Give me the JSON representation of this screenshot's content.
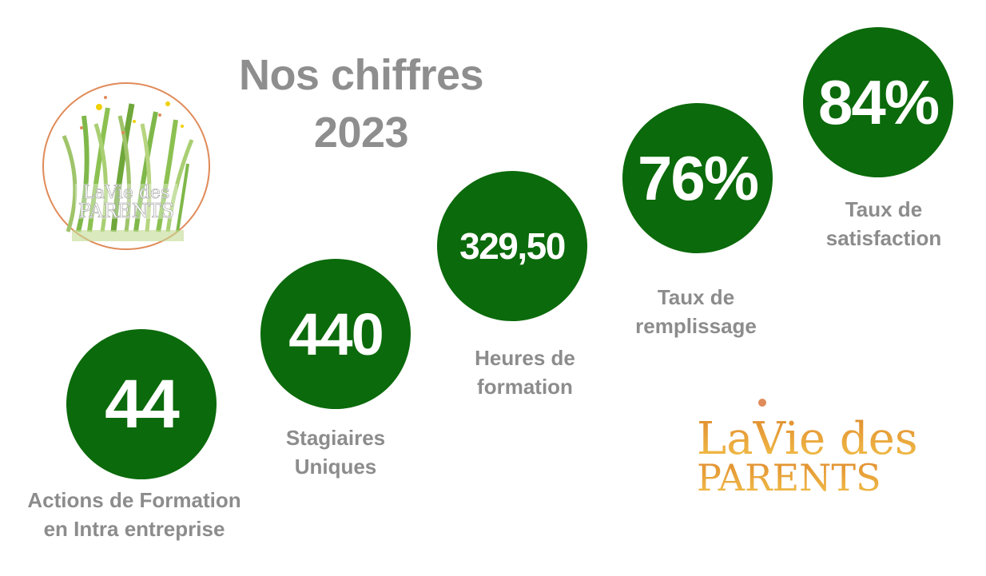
{
  "header": {
    "title_line1": "Nos chiffres",
    "title_line2": "2023"
  },
  "stats": [
    {
      "value": "44",
      "label_line1": "Actions de Formation",
      "label_line2": "en Intra entreprise"
    },
    {
      "value": "440",
      "label_line1": "Stagiaires",
      "label_line2": "Uniques"
    },
    {
      "value": "329,50",
      "label_line1": "Heures de",
      "label_line2": "formation"
    },
    {
      "value": "76%",
      "label_line1": "Taux de",
      "label_line2": "remplissage"
    },
    {
      "value": "84%",
      "label_line1": "Taux de",
      "label_line2": "satisfaction"
    }
  ],
  "logo": {
    "emblem_text_line1": "LaVie des",
    "emblem_text_line2": "PARENTS",
    "wordmark_line1": "LaVie des",
    "wordmark_line2": "PARENTS"
  },
  "colors": {
    "circle_green": "#0b6a0b",
    "text_gray": "#8c8c8c",
    "emblem_ring": "#e08b5a",
    "wordmark_orange": "#e9a035"
  }
}
